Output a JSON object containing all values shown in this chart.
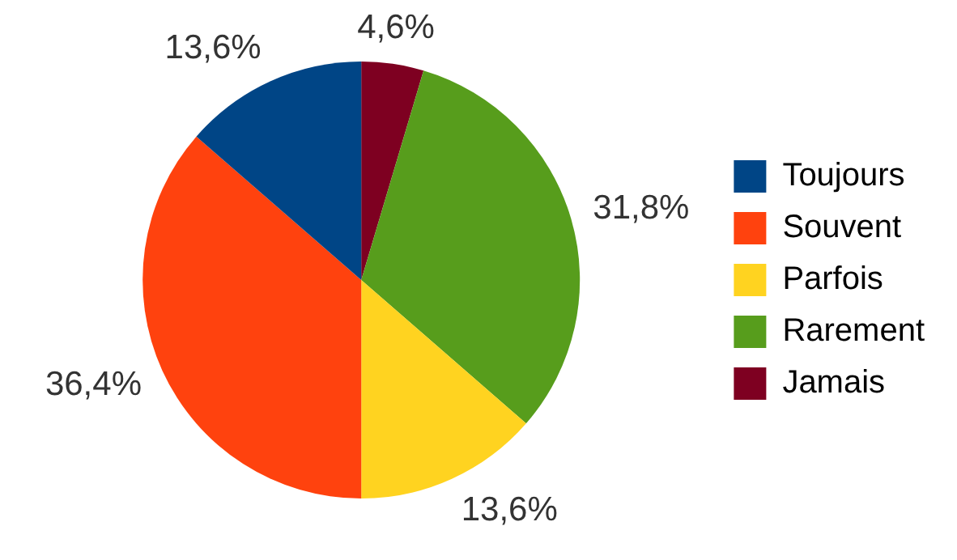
{
  "chart_data": {
    "type": "pie",
    "categories": [
      "Toujours",
      "Souvent",
      "Parfois",
      "Rarement",
      "Jamais"
    ],
    "values": [
      13.6,
      36.4,
      13.6,
      31.8,
      4.6
    ],
    "colors": [
      "#004586",
      "#ff420e",
      "#ffd320",
      "#579d1c",
      "#7e0021"
    ],
    "value_labels": [
      "13,6%",
      "36,4%",
      "13,6%",
      "31,8%",
      "4,6%"
    ],
    "legend": "right"
  }
}
